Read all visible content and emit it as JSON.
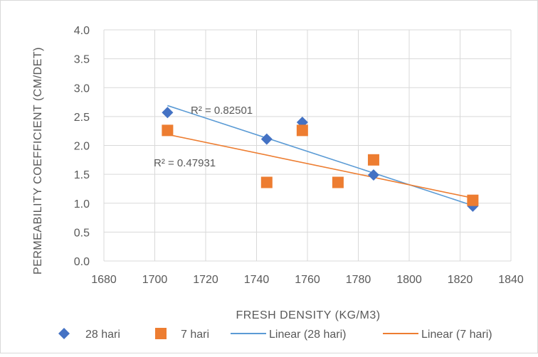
{
  "chart_data": {
    "type": "scatter",
    "xlabel": "FRESH DENSITY (KG/M3)",
    "ylabel": "PERMEABILITY COEFFICIENT (CM/DET)",
    "xlim": [
      1680,
      1840
    ],
    "ylim": [
      0.0,
      4.0
    ],
    "x_ticks": [
      "1680",
      "1700",
      "1720",
      "1740",
      "1760",
      "1780",
      "1800",
      "1820",
      "1840"
    ],
    "y_ticks": [
      "0.0",
      "0.5",
      "1.0",
      "1.5",
      "2.0",
      "2.5",
      "3.0",
      "3.5",
      "4.0"
    ],
    "grid": true,
    "legend_position": "bottom",
    "series": [
      {
        "name": "28 hari",
        "marker": "diamond",
        "color": "#4472C4",
        "points": [
          {
            "x": 1705,
            "y": 2.57
          },
          {
            "x": 1744,
            "y": 2.11
          },
          {
            "x": 1758,
            "y": 2.4
          },
          {
            "x": 1786,
            "y": 1.49
          },
          {
            "x": 1825,
            "y": 0.95
          }
        ]
      },
      {
        "name": "7 hari",
        "marker": "square",
        "color": "#ED7D31",
        "points": [
          {
            "x": 1705,
            "y": 2.26
          },
          {
            "x": 1744,
            "y": 1.36
          },
          {
            "x": 1758,
            "y": 2.26
          },
          {
            "x": 1772,
            "y": 1.36
          },
          {
            "x": 1786,
            "y": 1.75
          },
          {
            "x": 1825,
            "y": 1.05
          }
        ]
      }
    ],
    "trendlines": [
      {
        "name": "Linear (28 hari)",
        "color": "#5B9BD5",
        "from": {
          "x": 1705,
          "y": 2.69
        },
        "to": {
          "x": 1825,
          "y": 0.96
        },
        "r2_label": "R² = 0.82501"
      },
      {
        "name": "Linear (7 hari)",
        "color": "#ED7D31",
        "from": {
          "x": 1705,
          "y": 2.19
        },
        "to": {
          "x": 1825,
          "y": 1.09
        },
        "r2_label": "R² = 0.47931"
      }
    ]
  }
}
